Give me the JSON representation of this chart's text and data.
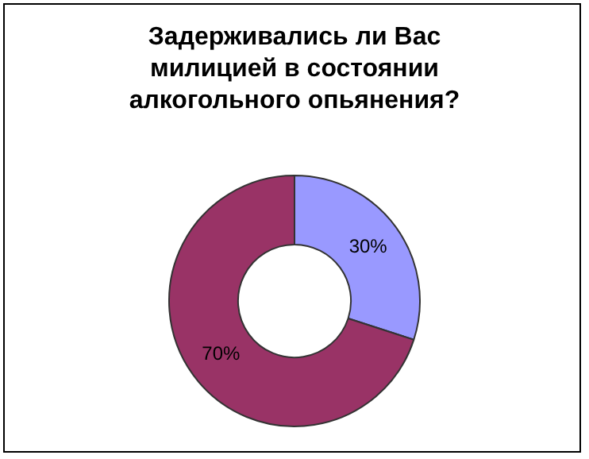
{
  "chart_data": {
    "type": "donut",
    "title": "Задерживались ли Вас милицией в состоянии алкогольного опьянения?",
    "categories": [
      null,
      null
    ],
    "values": [
      30,
      70
    ],
    "colors": [
      "#9999ff",
      "#993366"
    ],
    "value_labels": [
      "30%",
      "70%"
    ],
    "legend": false
  }
}
